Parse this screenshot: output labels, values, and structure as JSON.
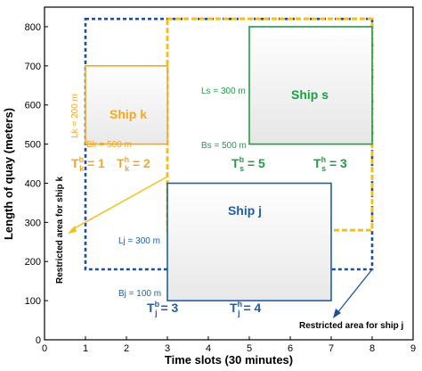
{
  "chart_data": {
    "type": "diagram",
    "xlabel": "Time slots (30 minutes)",
    "ylabel": "Length of quay (meters)",
    "xlim": [
      0,
      9
    ],
    "ylim": [
      0,
      850
    ],
    "x_ticks": [
      "0",
      "1",
      "2",
      "3",
      "4",
      "5",
      "6",
      "7",
      "8",
      "9"
    ],
    "y_ticks": [
      "0",
      "100",
      "200",
      "300",
      "400",
      "500",
      "600",
      "700",
      "800"
    ],
    "colors": {
      "ship_k": "#f5a623",
      "ship_s": "#1f9e46",
      "ship_j": "#1f5fa8",
      "restricted_k": "#f2c01e",
      "restricted_j": "#1b4f9e"
    },
    "ships": [
      {
        "id": "k",
        "name": "Ship k",
        "x0": 1,
        "x1": 3,
        "y0": 500,
        "y1": 700,
        "length_label": "Lk = 200 m",
        "berth_label": "Bk = 500 m",
        "t_start_base": "T",
        "t_start_sup": "b",
        "t_start_sub": "k",
        "t_start_val": " = 1",
        "t_handle_base": "T",
        "t_handle_sup": "h",
        "t_handle_sub": "k",
        "t_handle_val": " = 2"
      },
      {
        "id": "s",
        "name": "Ship s",
        "x0": 5,
        "x1": 8,
        "y0": 500,
        "y1": 800,
        "length_label": "Ls = 300 m",
        "berth_label": "Bs = 500 m",
        "t_start_base": "T",
        "t_start_sup": "b",
        "t_start_sub": "s",
        "t_start_val": " = 5",
        "t_handle_base": "T",
        "t_handle_sup": "h",
        "t_handle_sub": "s",
        "t_handle_val": " = 3"
      },
      {
        "id": "j",
        "name": "Ship j",
        "x0": 3,
        "x1": 7,
        "y0": 100,
        "y1": 400,
        "length_label": "Lj = 300 m",
        "berth_label": "Bj = 100 m",
        "t_start_base": "T",
        "t_start_sup": "b",
        "t_start_sub": "j",
        "t_start_val": " = 3",
        "t_handle_base": "T",
        "t_handle_sup": "h",
        "t_handle_sub": "j",
        "t_handle_val": " = 4"
      }
    ],
    "restricted_areas": [
      {
        "ship": "k",
        "x0": 3,
        "x1": 8,
        "y0": 280,
        "y1": 820,
        "label": "Restricted area for ship k"
      },
      {
        "ship": "j",
        "x0": 1,
        "x1": 8,
        "y0": 180,
        "y1": 820,
        "label": "Restricted area for ship j"
      }
    ]
  }
}
